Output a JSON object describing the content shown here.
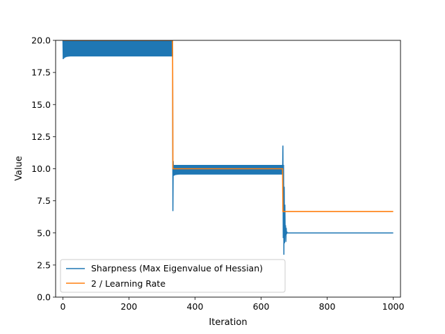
{
  "chart_data": {
    "type": "line",
    "title": "",
    "xlabel": "Iteration",
    "ylabel": "Value",
    "xlim": [
      -22,
      1022
    ],
    "ylim": [
      0,
      20
    ],
    "grid": false,
    "legend_position": "lower-left",
    "x_ticks": [
      0,
      200,
      400,
      600,
      800,
      1000
    ],
    "x_tick_labels": [
      "0",
      "200",
      "400",
      "600",
      "800",
      "1000"
    ],
    "y_ticks": [
      0,
      2.5,
      5,
      7.5,
      10,
      12.5,
      15,
      17.5,
      20
    ],
    "y_tick_labels": [
      "0.0",
      "2.5",
      "5.0",
      "7.5",
      "10.0",
      "12.5",
      "15.0",
      "17.5",
      "20.0"
    ],
    "series": [
      {
        "name": "Sharpness (Max Eigenvalue of Hessian)",
        "color": "#1f77b4",
        "segments": [
          {
            "x_start": 0,
            "x_end": 332,
            "upper": 20.3,
            "lower_start": 18.5,
            "lower_settle": 18.75
          },
          {
            "x_start": 333,
            "x_end": 665,
            "upper": 10.3,
            "lower_start": 9.4,
            "lower_settle": 9.55,
            "spike_min": 6.7,
            "spike_max": 10.6
          },
          {
            "x_start": 666,
            "x_end": 1000,
            "spike_min": 3.3,
            "spike_max": 11.8,
            "steady": 5.0
          }
        ]
      },
      {
        "name": "2 / Learning Rate",
        "color": "#ff7f0e",
        "x": [
          0,
          332,
          333,
          665,
          666,
          1000
        ],
        "y": [
          20.0,
          20.0,
          10.0,
          10.0,
          6.67,
          6.67
        ]
      }
    ]
  }
}
